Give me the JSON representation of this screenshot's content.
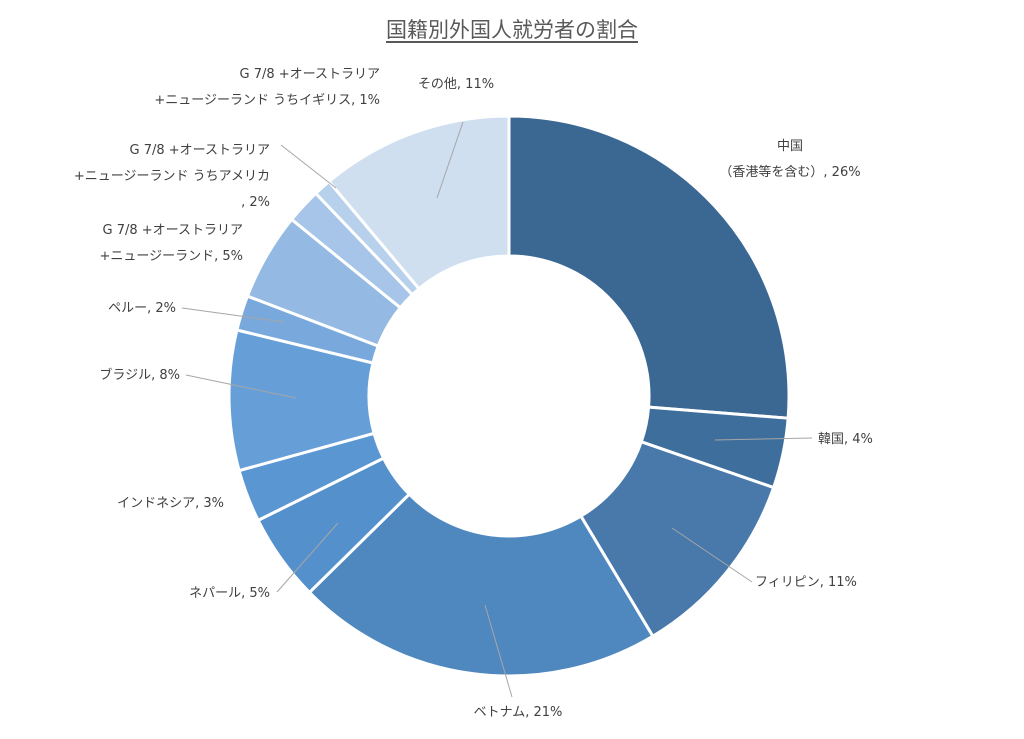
{
  "chart_data": {
    "type": "pie",
    "donut": true,
    "title": "国籍別外国人就労者の割合",
    "slices": [
      {
        "label": [
          "中国",
          "（香港等を含む）, 26%"
        ],
        "value": 26,
        "color": "#3b6893"
      },
      {
        "label": [
          "韓国, 4%"
        ],
        "value": 4,
        "color": "#3e6e9c"
      },
      {
        "label": [
          "フィリピン, 11%"
        ],
        "value": 11,
        "color": "#4879aa"
      },
      {
        "label": [
          "ベトナム, 21%"
        ],
        "value": 21,
        "color": "#4f88be"
      },
      {
        "label": [
          "ネパール, 5%"
        ],
        "value": 5,
        "color": "#5490cb"
      },
      {
        "label": [
          "インドネシア, 3%"
        ],
        "value": 3,
        "color": "#5a97d2"
      },
      {
        "label": [
          "ブラジル, 8%"
        ],
        "value": 8,
        "color": "#669fd8"
      },
      {
        "label": [
          "ペルー, 2%"
        ],
        "value": 2,
        "color": "#79a9dc"
      },
      {
        "label": [
          "G 7/8 +オーストラリア",
          "+ニュージーランド, 5%"
        ],
        "value": 5,
        "color": "#94bae3"
      },
      {
        "label": [
          "G 7/8 +オーストラリア",
          "+ニュージーランド うちアメリカ",
          ", 2%"
        ],
        "value": 2,
        "color": "#a7c5e8"
      },
      {
        "label": [
          "G 7/8 +オーストラリア",
          "+ニュージーランド うちイギリス, 1%"
        ],
        "value": 1,
        "color": "#b7d0ec"
      },
      {
        "label": [
          "その他, 11%"
        ],
        "value": 11,
        "color": "#cfdff0"
      }
    ]
  }
}
